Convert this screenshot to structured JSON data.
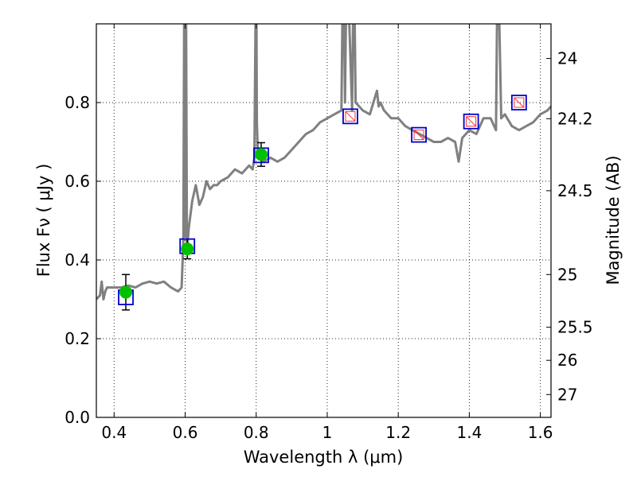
{
  "chart_data": {
    "type": "line",
    "title": "",
    "xlabel": "Wavelength  λ (μm)",
    "ylabel": "Flux  Fν  ( μJy )",
    "ylabel_right": "Magnitude (AB)",
    "xlim": [
      0.35,
      1.63
    ],
    "ylim": [
      0,
      1.0
    ],
    "grid": true,
    "x_ticks": [
      0.4,
      0.6,
      0.8,
      1.0,
      1.2,
      1.4,
      1.6
    ],
    "x_tick_labels": [
      "0.4",
      "0.6",
      "0.8",
      "1",
      "1.2",
      "1.4",
      "1.6"
    ],
    "y_ticks": [
      0,
      0.2,
      0.4,
      0.6,
      0.8
    ],
    "y_tick_labels": [
      "0.0",
      "0.2",
      "0.4",
      "0.6",
      "0.8"
    ],
    "right_ticks": [
      {
        "label": "24",
        "flux": 0.912
      },
      {
        "label": "24.2",
        "flux": 0.759
      },
      {
        "label": "24.5",
        "flux": 0.576
      },
      {
        "label": "25",
        "flux": 0.363
      },
      {
        "label": "25.5",
        "flux": 0.229
      },
      {
        "label": "26",
        "flux": 0.145
      },
      {
        "label": "27",
        "flux": 0.058
      }
    ],
    "series": [
      {
        "kind": "model-spectrum",
        "color": "#808080",
        "x": [
          0.35,
          0.36,
          0.365,
          0.37,
          0.375,
          0.38,
          0.39,
          0.4,
          0.42,
          0.44,
          0.46,
          0.48,
          0.5,
          0.52,
          0.54,
          0.56,
          0.58,
          0.59,
          0.595,
          0.598,
          0.6,
          0.602,
          0.605,
          0.61,
          0.62,
          0.63,
          0.64,
          0.65,
          0.66,
          0.67,
          0.68,
          0.69,
          0.7,
          0.72,
          0.74,
          0.76,
          0.78,
          0.79,
          0.795,
          0.8,
          0.802,
          0.805,
          0.81,
          0.82,
          0.84,
          0.86,
          0.88,
          0.9,
          0.92,
          0.94,
          0.96,
          0.98,
          1.0,
          1.02,
          1.04,
          1.045,
          1.05,
          1.055,
          1.07,
          1.075,
          1.08,
          1.09,
          1.1,
          1.12,
          1.14,
          1.145,
          1.15,
          1.16,
          1.18,
          1.2,
          1.22,
          1.24,
          1.26,
          1.28,
          1.3,
          1.32,
          1.34,
          1.36,
          1.37,
          1.38,
          1.4,
          1.42,
          1.44,
          1.46,
          1.47,
          1.475,
          1.48,
          1.49,
          1.5,
          1.52,
          1.54,
          1.56,
          1.58,
          1.6,
          1.62,
          1.63
        ],
        "y": [
          0.3,
          0.31,
          0.345,
          0.3,
          0.32,
          0.33,
          0.33,
          0.33,
          0.33,
          0.335,
          0.33,
          0.34,
          0.345,
          0.34,
          0.345,
          0.33,
          0.32,
          0.33,
          0.45,
          1.2,
          0.46,
          1.2,
          0.42,
          0.48,
          0.55,
          0.59,
          0.54,
          0.56,
          0.6,
          0.58,
          0.59,
          0.59,
          0.6,
          0.61,
          0.63,
          0.62,
          0.64,
          0.63,
          0.66,
          1.2,
          0.75,
          0.66,
          0.66,
          0.65,
          0.66,
          0.65,
          0.66,
          0.68,
          0.7,
          0.72,
          0.73,
          0.75,
          0.76,
          0.77,
          0.78,
          1.2,
          0.8,
          1.2,
          0.78,
          1.2,
          0.8,
          0.79,
          0.78,
          0.77,
          0.83,
          0.79,
          0.8,
          0.78,
          0.76,
          0.76,
          0.74,
          0.73,
          0.72,
          0.71,
          0.7,
          0.7,
          0.71,
          0.7,
          0.65,
          0.71,
          0.73,
          0.72,
          0.76,
          0.76,
          0.74,
          0.73,
          1.2,
          0.76,
          0.77,
          0.74,
          0.73,
          0.74,
          0.75,
          0.77,
          0.78,
          0.79
        ]
      },
      {
        "kind": "observed",
        "color": "#00c000",
        "points": [
          {
            "x": 0.433,
            "y": 0.318,
            "err": 0.045
          },
          {
            "x": 0.606,
            "y": 0.428,
            "err": 0.025
          },
          {
            "x": 0.814,
            "y": 0.668,
            "err": 0.03
          }
        ]
      },
      {
        "kind": "model-points",
        "color": "#0000cc",
        "points": [
          {
            "x": 0.433,
            "y": 0.305
          },
          {
            "x": 0.606,
            "y": 0.435
          },
          {
            "x": 0.814,
            "y": 0.666
          },
          {
            "x": 1.065,
            "y": 0.765
          },
          {
            "x": 1.258,
            "y": 0.718
          },
          {
            "x": 1.405,
            "y": 0.752
          },
          {
            "x": 1.54,
            "y": 0.8
          }
        ]
      },
      {
        "kind": "upper-limits",
        "color": "#ff3333",
        "points": [
          {
            "x": 1.065,
            "y": 0.765
          },
          {
            "x": 1.258,
            "y": 0.718
          },
          {
            "x": 1.405,
            "y": 0.752
          },
          {
            "x": 1.54,
            "y": 0.8
          }
        ]
      }
    ]
  }
}
